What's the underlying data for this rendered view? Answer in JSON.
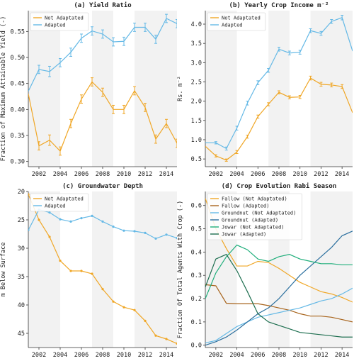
{
  "chart_data": [
    {
      "id": "a",
      "type": "line",
      "title": "(a) Yield Ratio",
      "ylabel": "Fraction of Maximum Attainable Yield (-)",
      "xlim": [
        2001,
        2015
      ],
      "ylim": [
        0.29,
        0.59
      ],
      "yticks": [
        0.3,
        0.35,
        0.4,
        0.45,
        0.5,
        0.55
      ],
      "ytick_labels": [
        "0.30",
        "0.35",
        "0.40",
        "0.45",
        "0.50",
        "0.55"
      ],
      "xticks": [
        2002,
        2004,
        2006,
        2008,
        2010,
        2012,
        2014
      ],
      "xtick_labels": [
        "2002",
        "2004",
        "2006",
        "2008",
        "2010",
        "2012",
        "2014"
      ],
      "shaded_x": [
        [
          2001,
          2004
        ],
        [
          2007,
          2009
        ],
        [
          2011,
          2015
        ]
      ],
      "legend": "top-left",
      "error_bars": true,
      "x": [
        2001,
        2002,
        2003,
        2004,
        2005,
        2006,
        2007,
        2008,
        2009,
        2010,
        2011,
        2012,
        2013,
        2014,
        2015
      ],
      "series": [
        {
          "name": "Not Adaptated",
          "color": "#f0a727",
          "values": [
            0.43,
            0.33,
            0.341,
            0.32,
            0.373,
            0.42,
            0.453,
            0.433,
            0.4,
            0.4,
            0.436,
            0.404,
            0.343,
            0.373,
            0.335
          ],
          "err": [
            0.0,
            0.008,
            0.01,
            0.008,
            0.008,
            0.008,
            0.008,
            0.008,
            0.008,
            0.008,
            0.008,
            0.008,
            0.008,
            0.008,
            0.008
          ]
        },
        {
          "name": "Adapted",
          "color": "#65b9e6",
          "values": [
            0.435,
            0.477,
            0.473,
            0.49,
            0.51,
            0.537,
            0.551,
            0.545,
            0.53,
            0.531,
            0.558,
            0.558,
            0.535,
            0.575,
            0.565
          ],
          "err": [
            0.0,
            0.008,
            0.01,
            0.008,
            0.008,
            0.008,
            0.008,
            0.008,
            0.008,
            0.008,
            0.008,
            0.008,
            0.008,
            0.008,
            0.008
          ]
        }
      ]
    },
    {
      "id": "b",
      "type": "line",
      "title": "(b) Yearly Crop Income m⁻²",
      "ylabel": "Rs. m⁻²",
      "xlim": [
        2001,
        2015
      ],
      "ylim": [
        0.3,
        4.35
      ],
      "yticks": [
        0.5,
        1.0,
        1.5,
        2.0,
        2.5,
        3.0,
        3.5,
        4.0
      ],
      "ytick_labels": [
        "0.5",
        "1.0",
        "1.5",
        "2.0",
        "2.5",
        "3.0",
        "3.5",
        "4.0"
      ],
      "xticks": [
        2002,
        2004,
        2006,
        2008,
        2010,
        2012,
        2014
      ],
      "xtick_labels": [
        "2002",
        "2004",
        "2006",
        "2008",
        "2010",
        "2012",
        "2014"
      ],
      "shaded_x": [
        [
          2001,
          2004
        ],
        [
          2007,
          2009
        ],
        [
          2011,
          2015
        ]
      ],
      "legend": "top-left",
      "error_bars": true,
      "x": [
        2001,
        2002,
        2003,
        2004,
        2005,
        2006,
        2007,
        2008,
        2009,
        2010,
        2011,
        2012,
        2013,
        2014,
        2015
      ],
      "series": [
        {
          "name": "Not Adaptated",
          "color": "#f0a727",
          "values": [
            0.83,
            0.58,
            0.47,
            0.68,
            1.08,
            1.6,
            1.92,
            2.23,
            2.1,
            2.11,
            2.6,
            2.44,
            2.42,
            2.38,
            1.7
          ],
          "err": [
            0.0,
            0.03,
            0.03,
            0.04,
            0.04,
            0.04,
            0.04,
            0.04,
            0.04,
            0.04,
            0.05,
            0.05,
            0.05,
            0.05,
            0.0
          ]
        },
        {
          "name": "Adapted",
          "color": "#65b9e6",
          "values": [
            0.92,
            0.92,
            0.77,
            1.3,
            1.95,
            2.48,
            2.8,
            3.35,
            3.25,
            3.27,
            3.83,
            3.76,
            4.07,
            4.17,
            3.3
          ],
          "err": [
            0.0,
            0.03,
            0.04,
            0.05,
            0.05,
            0.05,
            0.05,
            0.05,
            0.05,
            0.05,
            0.05,
            0.05,
            0.05,
            0.06,
            0.0
          ]
        }
      ]
    },
    {
      "id": "c",
      "type": "line",
      "title": "(c) Groundwater Depth",
      "ylabel": "m Below Surface",
      "inverted_y": true,
      "xlim": [
        2001,
        2015
      ],
      "ylim": [
        20,
        47.5
      ],
      "yticks": [
        20,
        25,
        30,
        35,
        40,
        45
      ],
      "ytick_labels": [
        "20",
        "25",
        "30",
        "35",
        "40",
        "45"
      ],
      "xticks": [
        2002,
        2004,
        2006,
        2008,
        2010,
        2012,
        2014
      ],
      "xtick_labels": [
        "2002",
        "2004",
        "2006",
        "2008",
        "2010",
        "2012",
        "2014"
      ],
      "shaded_x": [
        [
          2001,
          2004
        ],
        [
          2007,
          2009
        ],
        [
          2011,
          2015
        ]
      ],
      "legend": "top-left",
      "markers": true,
      "x": [
        2001,
        2002,
        2003,
        2004,
        2005,
        2006,
        2007,
        2008,
        2009,
        2010,
        2011,
        2012,
        2013,
        2014,
        2015
      ],
      "series": [
        {
          "name": "Not Adaptated",
          "color": "#f0a727",
          "values": [
            20.5,
            25.0,
            28.0,
            32.2,
            34.0,
            34.0,
            34.5,
            37.2,
            39.4,
            40.4,
            40.9,
            42.8,
            45.4,
            46.0,
            46.8
          ]
        },
        {
          "name": "Adapted",
          "color": "#65b9e6",
          "values": [
            26.8,
            23.2,
            23.7,
            24.9,
            25.3,
            24.7,
            24.3,
            25.3,
            26.2,
            26.9,
            27.0,
            27.3,
            28.3,
            27.6,
            28.2
          ]
        }
      ]
    },
    {
      "id": "d",
      "type": "line",
      "title": "(d) Crop Evolution Rabi Season",
      "ylabel": "Fraction Of Total Agents With Crop (-)",
      "xlim": [
        2001,
        2015
      ],
      "ylim": [
        -0.01,
        0.66
      ],
      "yticks": [
        0.0,
        0.1,
        0.2,
        0.3,
        0.4,
        0.5,
        0.6
      ],
      "ytick_labels": [
        "0.0",
        "0.1",
        "0.2",
        "0.3",
        "0.4",
        "0.5",
        "0.6"
      ],
      "xticks": [
        2002,
        2004,
        2006,
        2008,
        2010,
        2012,
        2014
      ],
      "xtick_labels": [
        "2002",
        "2004",
        "2006",
        "2008",
        "2010",
        "2012",
        "2014"
      ],
      "shaded_x": [
        [
          2001,
          2004
        ],
        [
          2007,
          2009
        ],
        [
          2011,
          2015
        ]
      ],
      "legend": "top-left",
      "x": [
        2001,
        2002,
        2003,
        2004,
        2005,
        2006,
        2007,
        2008,
        2009,
        2010,
        2011,
        2012,
        2013,
        2014,
        2015
      ],
      "series": [
        {
          "name": "Fallow (Not Adaptated)",
          "color": "#f0a727",
          "values": [
            0.63,
            0.5,
            0.415,
            0.34,
            0.34,
            0.36,
            0.355,
            0.33,
            0.3,
            0.27,
            0.25,
            0.23,
            0.22,
            0.205,
            0.185
          ]
        },
        {
          "name": "Fallow (Adapted)",
          "color": "#a8641c",
          "values": [
            0.26,
            0.255,
            0.18,
            0.178,
            0.178,
            0.178,
            0.17,
            0.16,
            0.15,
            0.135,
            0.125,
            0.125,
            0.12,
            0.11,
            0.1
          ]
        },
        {
          "name": "Groundnut (Not Adaptated)",
          "color": "#65b9e6",
          "values": [
            0.01,
            0.02,
            0.05,
            0.08,
            0.1,
            0.12,
            0.13,
            0.14,
            0.15,
            0.16,
            0.175,
            0.19,
            0.2,
            0.22,
            0.245
          ]
        },
        {
          "name": "Groundnut (Adapted)",
          "color": "#2b6f9e",
          "values": [
            0.0,
            0.015,
            0.035,
            0.065,
            0.1,
            0.135,
            0.16,
            0.2,
            0.25,
            0.3,
            0.34,
            0.38,
            0.42,
            0.47,
            0.49
          ]
        },
        {
          "name": "Jowar (Not Adaptated)",
          "color": "#1fae7b",
          "values": [
            0.2,
            0.31,
            0.38,
            0.43,
            0.41,
            0.37,
            0.36,
            0.38,
            0.39,
            0.37,
            0.36,
            0.35,
            0.35,
            0.345,
            0.345
          ]
        },
        {
          "name": "Jowar (Adapted)",
          "color": "#1d6e4f",
          "values": [
            0.25,
            0.37,
            0.39,
            0.32,
            0.23,
            0.135,
            0.1,
            0.085,
            0.07,
            0.055,
            0.05,
            0.045,
            0.04,
            0.035,
            0.035
          ]
        }
      ]
    }
  ]
}
